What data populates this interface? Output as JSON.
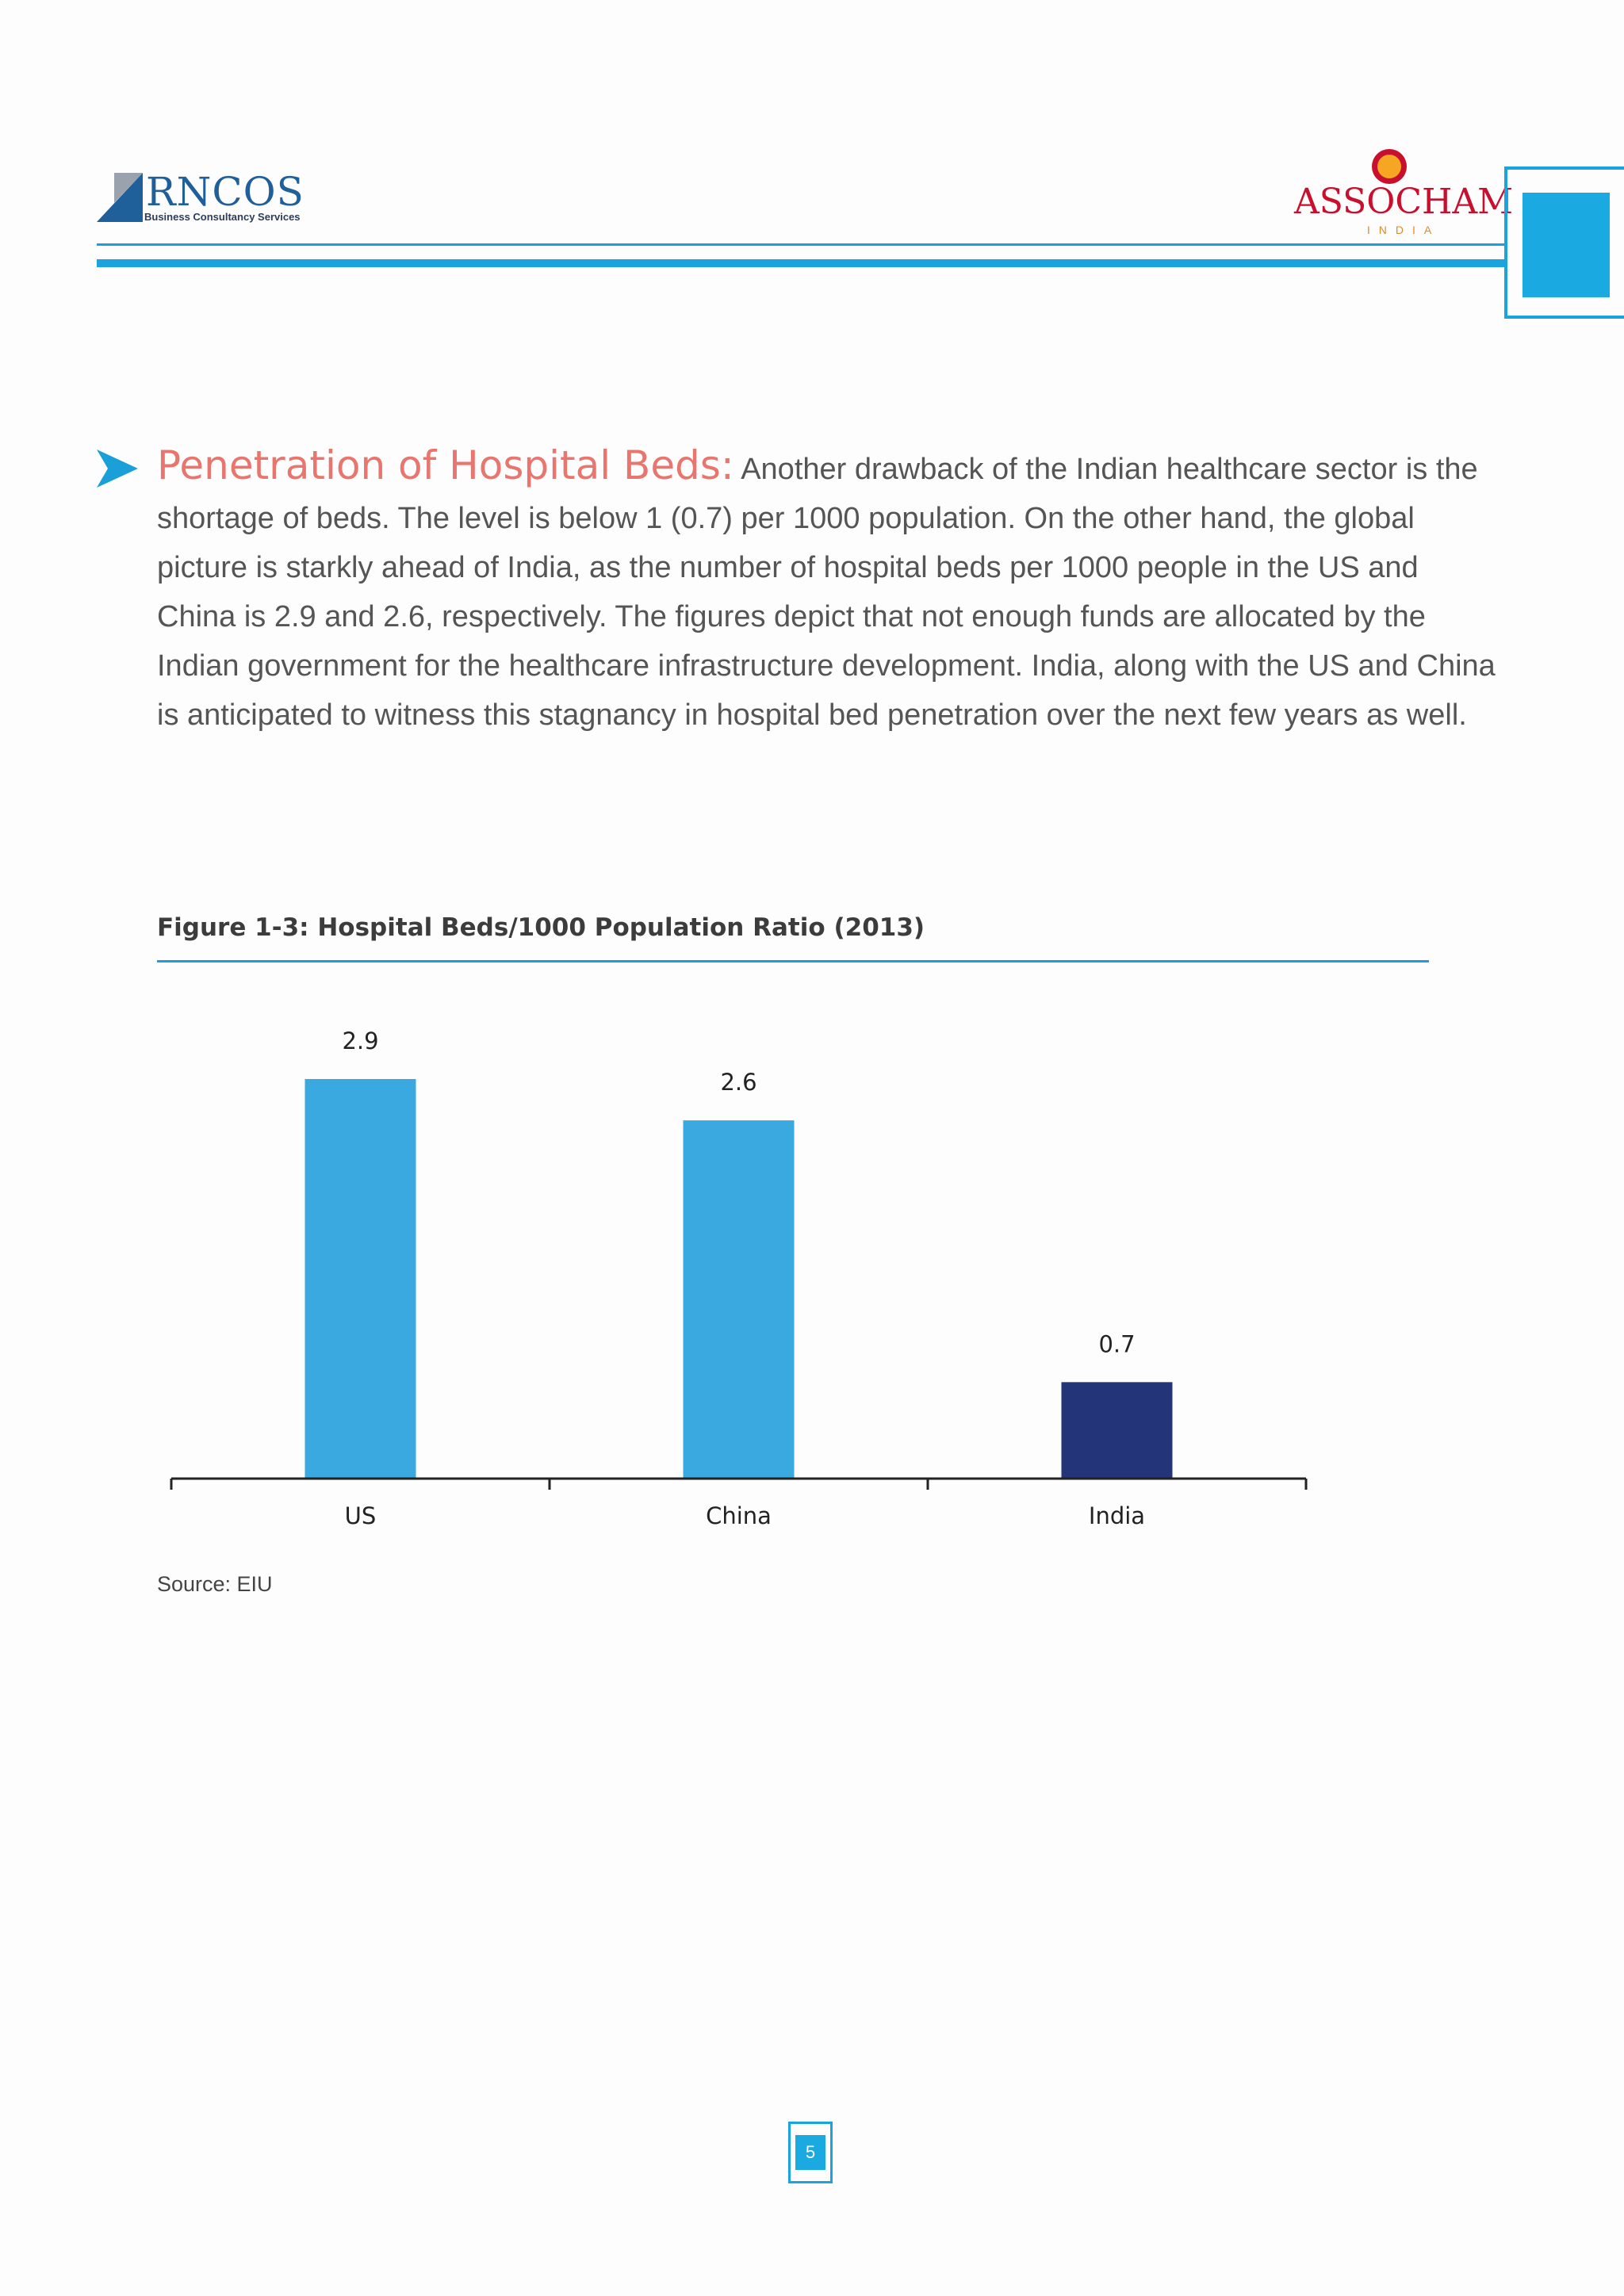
{
  "header": {
    "left_logo": {
      "name": "RNCOS",
      "tagline": "Business Consultancy Services"
    },
    "right_logo": {
      "name": "ASSOCHAM",
      "subtitle": "INDIA"
    }
  },
  "section": {
    "heading": "Penetration of Hospital Beds:",
    "body": "Another drawback of the Indian healthcare sector is the shortage of beds. The level is below 1 (0.7) per 1000 population. On the other hand, the global picture is starkly ahead of India, as the number of hospital beds per 1000 people in the US and China is 2.9 and 2.6, respectively. The figures depict that not enough funds are allocated by the Indian government for the healthcare infrastructure development. India, along with the US and China is anticipated to witness this stagnancy in hospital bed penetration over the next few years as well."
  },
  "figure": {
    "title": "Figure 1-3: Hospital Beds/1000 Population Ratio (2013)",
    "source": "Source: EIU"
  },
  "chart_data": {
    "type": "bar",
    "title": "",
    "xlabel": "",
    "ylabel": "",
    "categories": [
      "US",
      "China",
      "India"
    ],
    "values": [
      2.9,
      2.6,
      0.7
    ],
    "data_labels": [
      "2.9",
      "2.6",
      "0.7"
    ],
    "colors": [
      "#3aa9e0",
      "#3aa9e0",
      "#243478"
    ],
    "ylim": [
      0,
      2.9
    ],
    "grid": false,
    "legend": "none"
  },
  "footer": {
    "page_number": "5"
  },
  "colors": {
    "accent": "#1aa3dc",
    "heading": "#e8766f",
    "bar_primary": "#3aa9e0",
    "bar_highlight": "#243478"
  }
}
